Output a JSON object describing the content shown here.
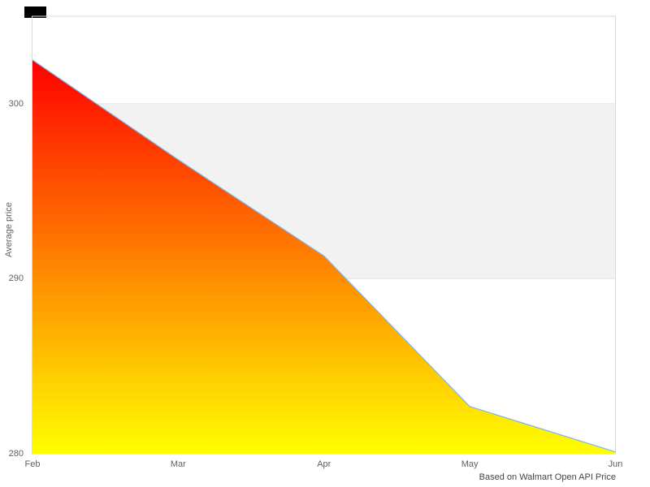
{
  "chart": {
    "y_axis_title": "Average price",
    "caption": "Based on Walmart Open API Price",
    "colors": {
      "series_line": "#7cb5ec",
      "area_gradient_top": "#ff0000",
      "area_gradient_bottom": "#ffff00",
      "plot_band": "#f2f2f2",
      "gridline": "#e6e6e6",
      "plot_border": "#d9d9d9",
      "axis_label": "#606060",
      "artifact_box": "#000000"
    }
  },
  "chart_data": {
    "type": "area",
    "title": "",
    "xlabel": "",
    "ylabel": "Average price",
    "categories": [
      "Feb",
      "Mar",
      "Apr",
      "May",
      "Jun"
    ],
    "values": [
      302.5,
      296.8,
      291.3,
      282.7,
      280.1
    ],
    "ylim": [
      280,
      305
    ],
    "yticks": [
      280,
      290,
      300
    ],
    "plot_band": {
      "from": 290,
      "to": 300
    },
    "grid": "horizontal",
    "legend": "none",
    "caption": "Based on Walmart Open API Price"
  }
}
